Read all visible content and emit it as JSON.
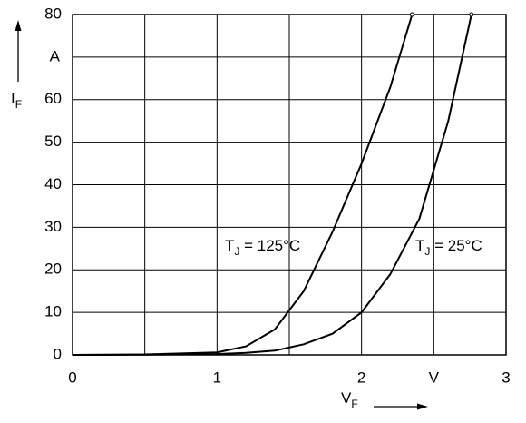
{
  "chart_data": {
    "type": "line",
    "x_label": {
      "text": "V",
      "subscript": "F"
    },
    "y_label": {
      "text": "I",
      "subscript": "F"
    },
    "xlim": [
      0,
      3
    ],
    "ylim": [
      0,
      80
    ],
    "xticks": [
      0,
      {
        "value": 0.5,
        "label": null
      },
      1,
      {
        "value": 1.5,
        "label": null
      },
      2,
      {
        "value": 2.5,
        "label": "V"
      },
      3
    ],
    "yticks": [
      0,
      10,
      20,
      30,
      40,
      50,
      60,
      {
        "value": 70,
        "label": "A"
      },
      80
    ],
    "grid": true,
    "series": [
      {
        "color": "#000000",
        "x": [
          0,
          0.5,
          1.0,
          1.2,
          1.4,
          1.6,
          1.8,
          2.0,
          2.2,
          2.35
        ],
        "values": [
          0,
          0.1,
          0.6,
          2,
          6,
          15,
          29,
          45,
          63,
          80
        ]
      },
      {
        "color": "#000000",
        "x": [
          0,
          0.5,
          1.0,
          1.2,
          1.4,
          1.6,
          1.8,
          2.0,
          2.2,
          2.4,
          2.6,
          2.76
        ],
        "values": [
          0,
          0.05,
          0.2,
          0.5,
          1,
          2.5,
          5,
          10,
          19,
          32,
          55,
          80
        ]
      }
    ],
    "annotations": [
      {
        "text": "T",
        "subscript": "J",
        "rest": " = 125°C"
      },
      {
        "text": "T",
        "subscript": "J",
        "rest": " = 25°C"
      }
    ]
  }
}
